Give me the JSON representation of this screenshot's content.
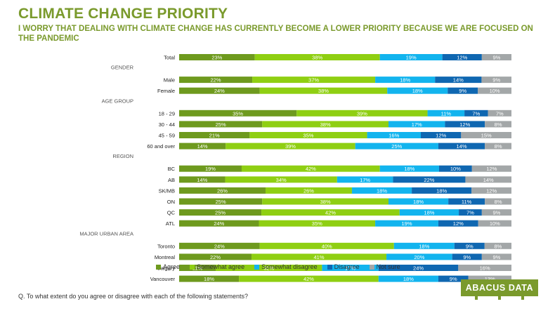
{
  "title": "CLIMATE CHANGE PRIORITY",
  "subtitle": "I WORRY THAT DEALING WITH CLIMATE CHANGE HAS CURRENTLY BECOME A LOWER PRIORITY BECAUSE WE ARE FOCUSED ON THE PANDEMIC",
  "footnote": "Q. To what extent do you agree or disagree with each of the following statements?",
  "logo": "ABACUS DATA",
  "colors": {
    "Agree": "#6e9a1e",
    "Somewhat agree": "#8fcf12",
    "Somewhat disagree": "#12b4ee",
    "Disagree": "#0f67b1",
    "Not sure": "#a3a7a8",
    "brand": "#7a9a2c"
  },
  "chart_data": {
    "type": "bar",
    "orientation": "horizontal",
    "stacked": true,
    "normalized": true,
    "xlim": [
      0,
      100
    ],
    "value_suffix": "%",
    "series_names": [
      "Agree",
      "Somewhat agree",
      "Somewhat disagree",
      "Disagree",
      "Not sure"
    ],
    "legend_position": "bottom",
    "rows": [
      {
        "label": "Total",
        "values": [
          23,
          38,
          19,
          12,
          9
        ]
      },
      {
        "group": "GENDER"
      },
      {
        "label": "Male",
        "values": [
          22,
          37,
          18,
          14,
          9
        ]
      },
      {
        "label": "Female",
        "values": [
          24,
          38,
          18,
          9,
          10
        ]
      },
      {
        "group": "AGE GROUP"
      },
      {
        "label": "18 - 29",
        "values": [
          35,
          39,
          11,
          7,
          7
        ]
      },
      {
        "label": "30 - 44",
        "values": [
          25,
          38,
          17,
          12,
          8
        ]
      },
      {
        "label": "45 - 59",
        "values": [
          21,
          35,
          16,
          12,
          15
        ]
      },
      {
        "label": "60 and over",
        "values": [
          14,
          39,
          25,
          14,
          8
        ]
      },
      {
        "group": "REGION"
      },
      {
        "label": "BC",
        "values": [
          19,
          42,
          18,
          10,
          12
        ]
      },
      {
        "label": "AB",
        "values": [
          14,
          34,
          17,
          22,
          14
        ]
      },
      {
        "label": "SK/MB",
        "values": [
          26,
          26,
          18,
          18,
          12
        ]
      },
      {
        "label": "ON",
        "values": [
          25,
          38,
          18,
          11,
          8
        ]
      },
      {
        "label": "QC",
        "values": [
          25,
          42,
          18,
          7,
          9
        ]
      },
      {
        "label": "ATL",
        "values": [
          24,
          35,
          19,
          12,
          10
        ]
      },
      {
        "group": "MAJOR URBAN AREA"
      },
      {
        "label": "Toronto",
        "values": [
          24,
          40,
          18,
          9,
          8
        ]
      },
      {
        "label": "Montreal",
        "values": [
          22,
          41,
          20,
          9,
          9
        ]
      },
      {
        "label": "Calgary",
        "values": [
          11,
          32,
          17,
          24,
          16
        ]
      },
      {
        "label": "Vancouver",
        "values": [
          18,
          42,
          18,
          9,
          13
        ]
      }
    ]
  }
}
